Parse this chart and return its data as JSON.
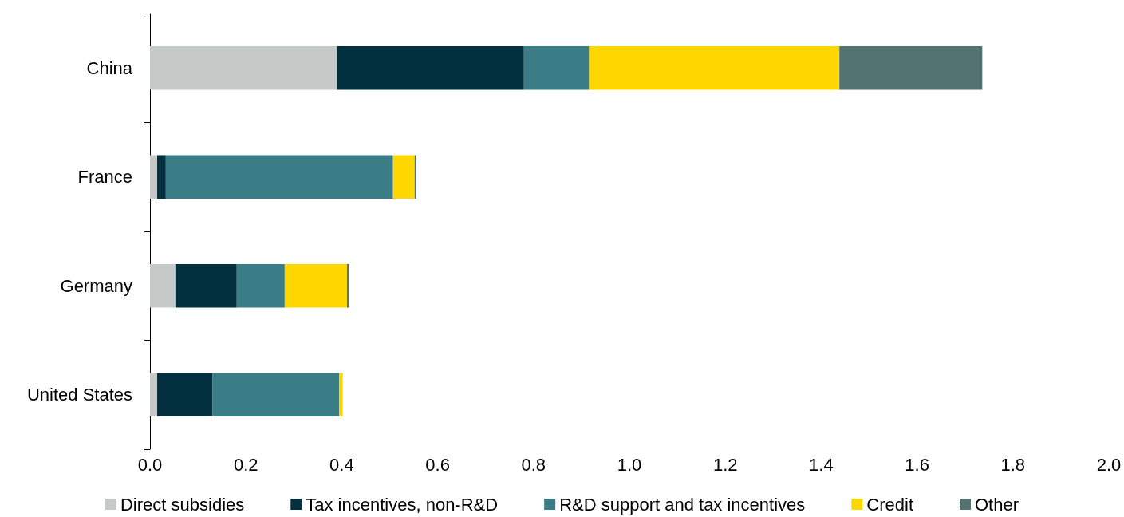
{
  "chart_data": {
    "type": "bar",
    "orientation": "horizontal",
    "stacked": true,
    "categories": [
      "China",
      "France",
      "Germany",
      "United States"
    ],
    "series": [
      {
        "name": "Direct subsidies",
        "color": "#c5cac8",
        "values": [
          0.39,
          0.015,
          0.053,
          0.015
        ]
      },
      {
        "name": "Tax incentives, non-R&D",
        "color": "#02303f",
        "values": [
          0.39,
          0.018,
          0.128,
          0.115
        ]
      },
      {
        "name": "R&D support and tax incentives",
        "color": "#3b7d87",
        "values": [
          0.136,
          0.474,
          0.1,
          0.265
        ]
      },
      {
        "name": "Credit",
        "color": "#ffd700",
        "values": [
          0.522,
          0.045,
          0.13,
          0.007
        ]
      },
      {
        "name": "Other",
        "color": "#537272",
        "values": [
          0.298,
          0.003,
          0.005,
          0
        ]
      }
    ],
    "xlim": [
      0,
      2
    ],
    "xticks": [
      {
        "value": 0,
        "label": "0.0"
      },
      {
        "value": 0.2,
        "label": "0.2"
      },
      {
        "value": 0.4,
        "label": "0.4"
      },
      {
        "value": 0.6,
        "label": "0.6"
      },
      {
        "value": 0.8,
        "label": "0.8"
      },
      {
        "value": 1,
        "label": "1.0"
      },
      {
        "value": 1.2,
        "label": "1.2"
      },
      {
        "value": 1.4,
        "label": "1.4"
      },
      {
        "value": 1.6,
        "label": "1.6"
      },
      {
        "value": 1.8,
        "label": "1.8"
      },
      {
        "value": 2,
        "label": "2.0"
      }
    ],
    "grid": false,
    "legend": "bottom"
  }
}
